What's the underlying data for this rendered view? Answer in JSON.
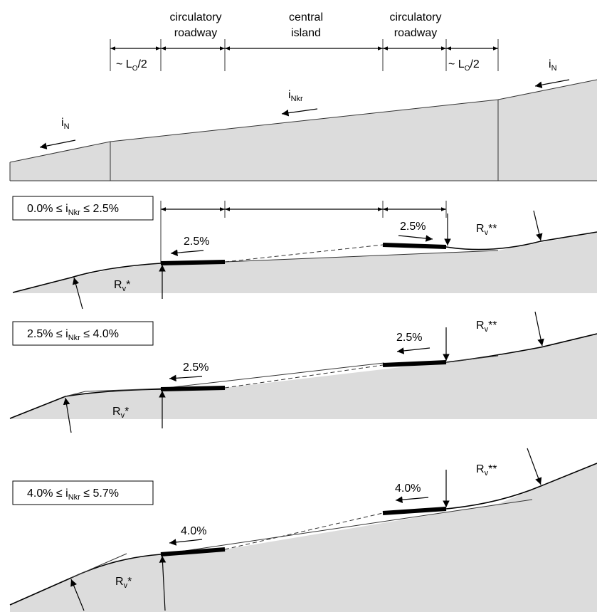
{
  "header": {
    "circ_left_line1": "circulatory",
    "circ_left_line2": "roadway",
    "central_line1": "central",
    "central_line2": "island",
    "circ_right_line1": "circulatory",
    "circ_right_line2": "roadway",
    "lo_left": "~ L",
    "lo_left_sub": "O",
    "lo_left_end": "/2",
    "lo_right": "~ L",
    "lo_right_sub": "O",
    "lo_right_end": "/2"
  },
  "top_profile": {
    "in_left": "i",
    "in_left_sub": "N",
    "inkr": "i",
    "inkr_sub": "Nkr",
    "in_right": "i",
    "in_right_sub": "N"
  },
  "panels": [
    {
      "range_a": "0.0% ≤ i",
      "range_sub": "Nkr",
      "range_b": " ≤ 2.5%",
      "left_slope": "2.5%",
      "right_slope": "2.5%",
      "rv1": "R",
      "rv1_sub": "v",
      "rv1_mark": "*",
      "rv2": "R",
      "rv2_sub": "v",
      "rv2_mark": "**"
    },
    {
      "range_a": "2.5% ≤ i",
      "range_sub": "Nkr",
      "range_b": " ≤ 4.0%",
      "left_slope": "2.5%",
      "right_slope": "2.5%",
      "rv1": "R",
      "rv1_sub": "v",
      "rv1_mark": "*",
      "rv2": "R",
      "rv2_sub": "v",
      "rv2_mark": "**"
    },
    {
      "range_a": "4.0% ≤ i",
      "range_sub": "Nkr",
      "range_b": " ≤ 5.7%",
      "left_slope": "4.0%",
      "right_slope": "4.0%",
      "rv1": "R",
      "rv1_sub": "v",
      "rv1_mark": "*",
      "rv2": "R",
      "rv2_sub": "v",
      "rv2_mark": "**"
    }
  ]
}
